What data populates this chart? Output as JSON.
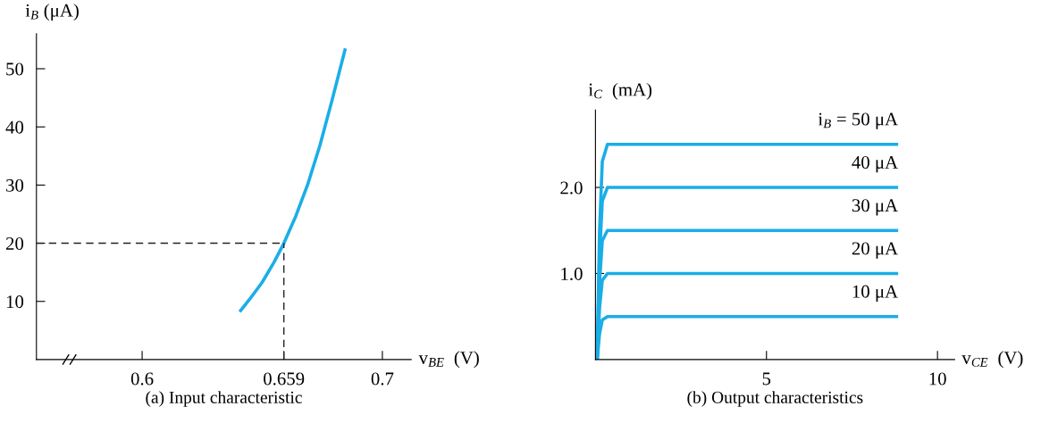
{
  "chart_data": [
    {
      "type": "line",
      "title": "(a) Input characteristic",
      "xlabel": "v$_{BE}$  (V)",
      "ylabel": "i$_{B}$ (μA)",
      "x": [
        0.6406,
        0.645,
        0.65,
        0.655,
        0.659,
        0.664,
        0.669,
        0.674,
        0.679,
        0.6846
      ],
      "series": [
        {
          "color": "#1aaee6",
          "values": [
            8.2,
            10.5,
            13.3,
            16.8,
            20,
            24.7,
            30.2,
            36.8,
            44.5,
            53.5
          ]
        }
      ],
      "xlim": [
        0.556,
        0.712
      ],
      "ylim": [
        0,
        56
      ],
      "xticks": [
        0.6,
        0.659,
        0.7
      ],
      "yticks": [
        10,
        20,
        30,
        40,
        50
      ],
      "ref_lines": [
        {
          "axis": "y",
          "value": 20,
          "color": "#222222",
          "line_style": "dashed"
        },
        {
          "axis": "x",
          "value": 0.659,
          "color": "#222222",
          "line_style": "dashed"
        }
      ],
      "grid": false,
      "legend": false,
      "line_style": "solid",
      "marker": "none"
    },
    {
      "type": "line",
      "title": "(b) Output characteristics",
      "xlabel": "v$_{CE}$  (V)",
      "ylabel": "i$_{C}$  (mA)",
      "x": [
        0.05,
        0.12,
        0.2,
        0.35,
        8.85
      ],
      "series": [
        {
          "name": "i$_{B}$ = 50 μA",
          "color": "#1aaee6",
          "values": [
            0,
            1.5,
            2.3,
            2.5,
            2.5
          ]
        },
        {
          "name": "40 μA",
          "color": "#1aaee6",
          "values": [
            0,
            1.2,
            1.84,
            2.0,
            2.0
          ]
        },
        {
          "name": "30 μA",
          "color": "#1aaee6",
          "values": [
            0,
            0.9,
            1.38,
            1.5,
            1.5
          ]
        },
        {
          "name": "20 μA",
          "color": "#1aaee6",
          "values": [
            0,
            0.6,
            0.92,
            1.0,
            1.0
          ]
        },
        {
          "name": "10 μA",
          "color": "#1aaee6",
          "values": [
            0,
            0.3,
            0.46,
            0.5,
            0.5
          ]
        }
      ],
      "xlim": [
        0,
        10.5
      ],
      "ylim": [
        0,
        2.9
      ],
      "xticks": [
        5,
        10
      ],
      "yticks": [
        {
          "value": 1,
          "label": "1.0"
        },
        {
          "value": 2,
          "label": "2.0"
        }
      ],
      "grid": false,
      "legend": false,
      "line_style": "solid",
      "marker": "none"
    }
  ]
}
